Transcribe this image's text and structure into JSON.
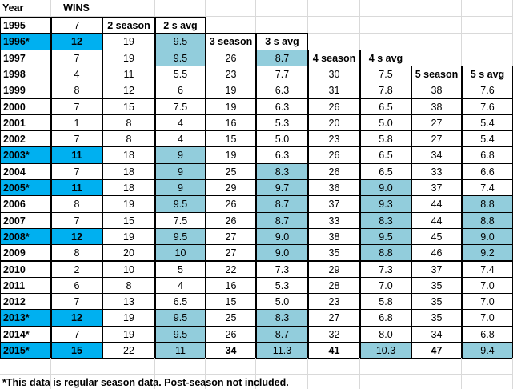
{
  "header": [
    "Year",
    "WINS"
  ],
  "rows": [
    {
      "cells": [
        "1995",
        "7",
        "2 season",
        "2 s avg",
        null,
        null,
        null,
        null,
        null,
        null
      ],
      "bold": [
        0,
        2,
        3
      ],
      "bright": [],
      "shaded": []
    },
    {
      "cells": [
        "1996*",
        "12",
        "19",
        "9.5",
        "3 season",
        "3 s avg",
        null,
        null,
        null,
        null
      ],
      "bold": [
        0,
        1,
        4,
        5
      ],
      "bright": [
        0,
        1
      ],
      "shaded": [
        3
      ]
    },
    {
      "cells": [
        "1997",
        "7",
        "19",
        "9.5",
        "26",
        "8.7",
        "4 season",
        "4 s avg",
        null,
        null
      ],
      "bold": [
        0,
        6,
        7
      ],
      "bright": [],
      "shaded": [
        3,
        5
      ]
    },
    {
      "cells": [
        "1998",
        "4",
        "11",
        "5.5",
        "23",
        "7.7",
        "30",
        "7.5",
        "5 season",
        "5 s avg"
      ],
      "bold": [
        0,
        8,
        9
      ],
      "bright": [],
      "shaded": []
    },
    {
      "cells": [
        "1999",
        "8",
        "12",
        "6",
        "19",
        "6.3",
        "31",
        "7.8",
        "38",
        "7.6"
      ],
      "bold": [
        0
      ],
      "bright": [],
      "shaded": []
    },
    {
      "cells": [
        "2000",
        "7",
        "15",
        "7.5",
        "19",
        "6.3",
        "26",
        "6.5",
        "38",
        "7.6"
      ],
      "bold": [
        0
      ],
      "bright": [],
      "shaded": []
    },
    {
      "cells": [
        "2001",
        "1",
        "8",
        "4",
        "16",
        "5.3",
        "20",
        "5.0",
        "27",
        "5.4"
      ],
      "bold": [
        0
      ],
      "bright": [],
      "shaded": []
    },
    {
      "cells": [
        "2002",
        "7",
        "8",
        "4",
        "15",
        "5.0",
        "23",
        "5.8",
        "27",
        "5.4"
      ],
      "bold": [
        0
      ],
      "bright": [],
      "shaded": []
    },
    {
      "cells": [
        "2003*",
        "11",
        "18",
        "9",
        "19",
        "6.3",
        "26",
        "6.5",
        "34",
        "6.8"
      ],
      "bold": [
        0,
        1
      ],
      "bright": [
        0,
        1
      ],
      "shaded": [
        3
      ]
    },
    {
      "cells": [
        "2004",
        "7",
        "18",
        "9",
        "25",
        "8.3",
        "26",
        "6.5",
        "33",
        "6.6"
      ],
      "bold": [
        0
      ],
      "bright": [],
      "shaded": [
        3,
        5
      ]
    },
    {
      "cells": [
        "2005*",
        "11",
        "18",
        "9",
        "29",
        "9.7",
        "36",
        "9.0",
        "37",
        "7.4"
      ],
      "bold": [
        0,
        1
      ],
      "bright": [
        0,
        1
      ],
      "shaded": [
        3,
        5,
        7
      ]
    },
    {
      "cells": [
        "2006",
        "8",
        "19",
        "9.5",
        "26",
        "8.7",
        "37",
        "9.3",
        "44",
        "8.8"
      ],
      "bold": [
        0
      ],
      "bright": [],
      "shaded": [
        3,
        5,
        7,
        9
      ]
    },
    {
      "cells": [
        "2007",
        "7",
        "15",
        "7.5",
        "26",
        "8.7",
        "33",
        "8.3",
        "44",
        "8.8"
      ],
      "bold": [
        0
      ],
      "bright": [],
      "shaded": [
        5,
        7,
        9
      ]
    },
    {
      "cells": [
        "2008*",
        "12",
        "19",
        "9.5",
        "27",
        "9.0",
        "38",
        "9.5",
        "45",
        "9.0"
      ],
      "bold": [
        0,
        1
      ],
      "bright": [
        0,
        1
      ],
      "shaded": [
        3,
        5,
        7,
        9
      ]
    },
    {
      "cells": [
        "2009",
        "8",
        "20",
        "10",
        "27",
        "9.0",
        "35",
        "8.8",
        "46",
        "9.2"
      ],
      "bold": [
        0
      ],
      "bright": [],
      "shaded": [
        3,
        5,
        7,
        9
      ]
    },
    {
      "cells": [
        "2010",
        "2",
        "10",
        "5",
        "22",
        "7.3",
        "29",
        "7.3",
        "37",
        "7.4"
      ],
      "bold": [
        0
      ],
      "bright": [],
      "shaded": []
    },
    {
      "cells": [
        "2011",
        "6",
        "8",
        "4",
        "16",
        "5.3",
        "28",
        "7.0",
        "35",
        "7.0"
      ],
      "bold": [
        0
      ],
      "bright": [],
      "shaded": []
    },
    {
      "cells": [
        "2012",
        "7",
        "13",
        "6.5",
        "15",
        "5.0",
        "23",
        "5.8",
        "35",
        "7.0"
      ],
      "bold": [
        0
      ],
      "bright": [],
      "shaded": []
    },
    {
      "cells": [
        "2013*",
        "12",
        "19",
        "9.5",
        "25",
        "8.3",
        "27",
        "6.8",
        "35",
        "7.0"
      ],
      "bold": [
        0,
        1
      ],
      "bright": [
        0,
        1
      ],
      "shaded": [
        3,
        5
      ]
    },
    {
      "cells": [
        "2014*",
        "7",
        "19",
        "9.5",
        "26",
        "8.7",
        "32",
        "8.0",
        "34",
        "6.8"
      ],
      "bold": [
        0
      ],
      "bright": [],
      "shaded": [
        3,
        5
      ]
    },
    {
      "cells": [
        "2015*",
        "15",
        "22",
        "11",
        "34",
        "11.3",
        "41",
        "10.3",
        "47",
        "9.4"
      ],
      "bold": [
        0,
        1,
        4,
        6,
        8
      ],
      "bright": [
        0,
        1
      ],
      "shaded": [
        3,
        5,
        7,
        9
      ]
    }
  ],
  "footnote": "*This data is regular season data.  Post-season not included."
}
